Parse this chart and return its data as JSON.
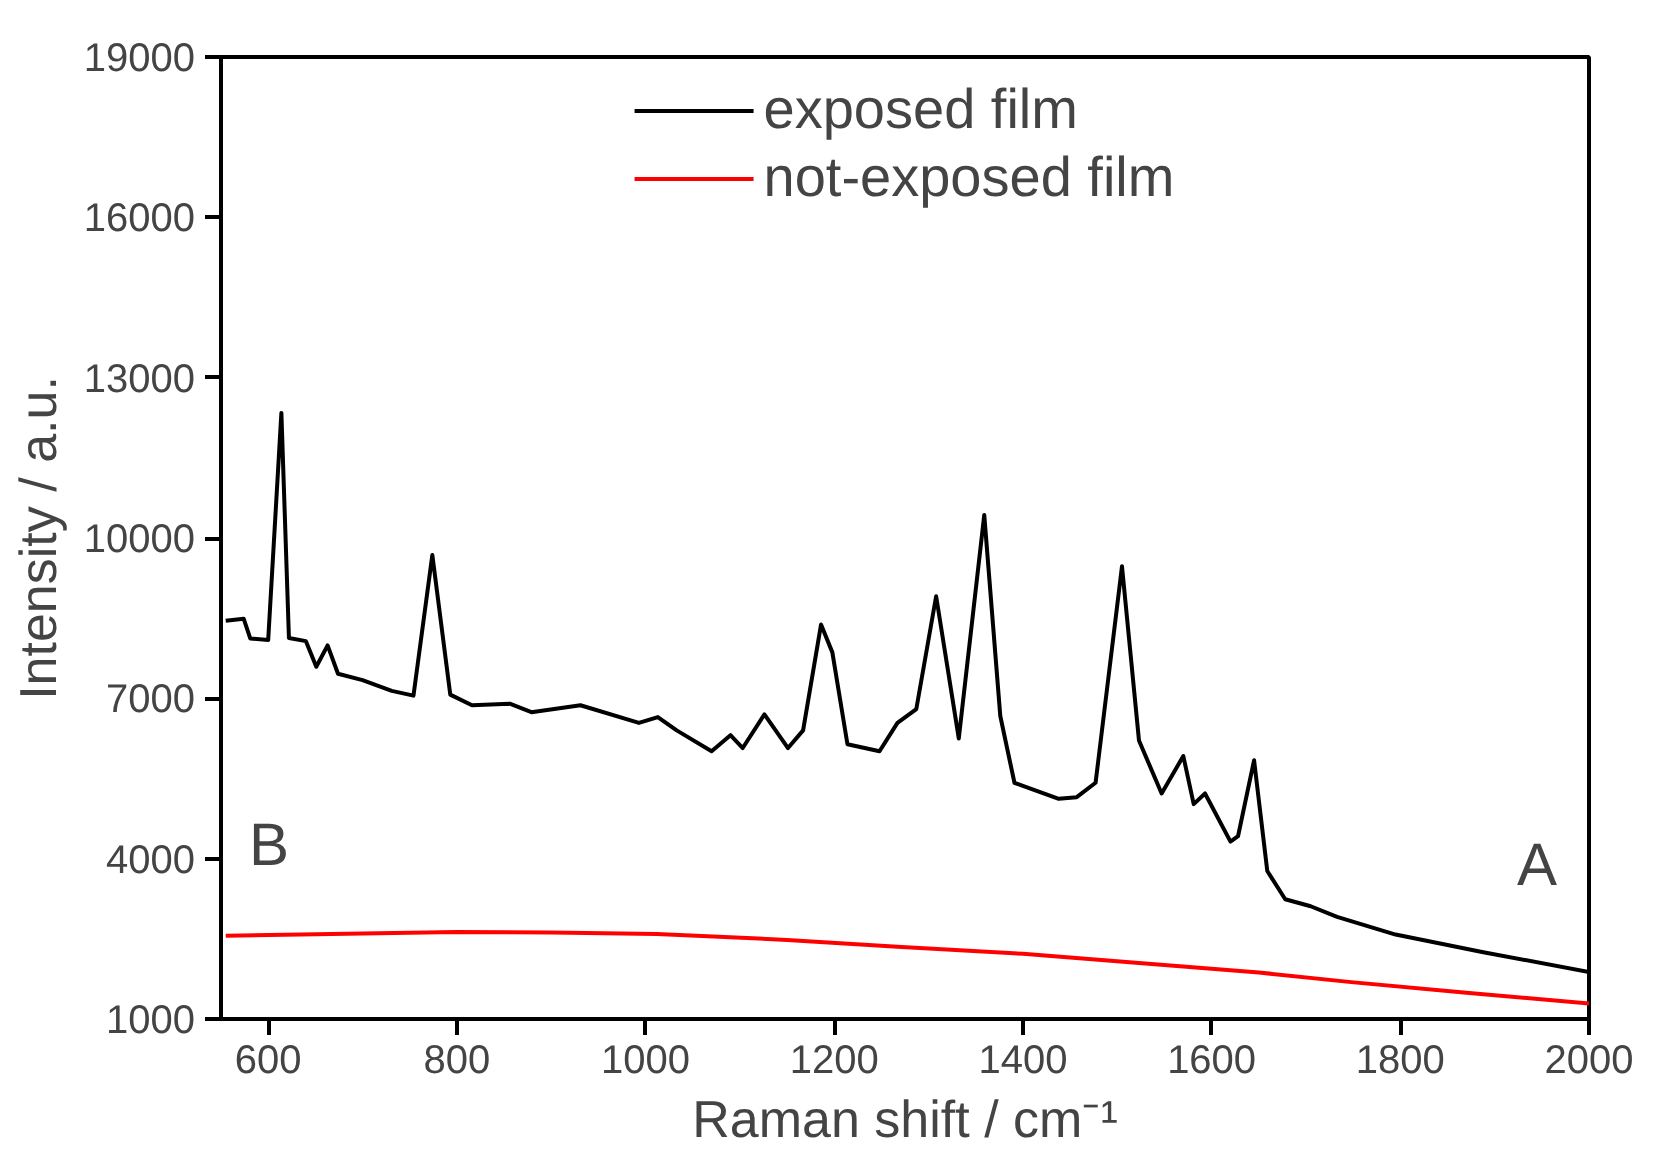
{
  "chart_data": {
    "type": "line",
    "xlabel": "Raman shift / cm⁻¹",
    "ylabel": "Intensity / a.u.",
    "xlim": [
      550,
      2000
    ],
    "xticks": [
      600,
      800,
      1000,
      1200,
      1400,
      1600,
      1800,
      2000
    ],
    "ylim": [
      1000,
      19000
    ],
    "yticks": [
      1000,
      4000,
      7000,
      10000,
      13000,
      16000,
      19000
    ],
    "grid": false,
    "legend": "top",
    "line_style": "solid",
    "marker": "none",
    "series": [
      {
        "name": "exposed film",
        "color": "#000000",
        "x": [
          555,
          574,
          581,
          600,
          614,
          622,
          640,
          651,
          663,
          674,
          700,
          731,
          754,
          774,
          793,
          816,
          856,
          879,
          931,
          993,
          1013,
          1033,
          1070,
          1090,
          1103,
          1126,
          1151,
          1167,
          1186,
          1198,
          1214,
          1248,
          1267,
          1287,
          1308,
          1332,
          1359,
          1376,
          1391,
          1438,
          1457,
          1477,
          1505,
          1523,
          1547,
          1570,
          1581,
          1593,
          1620,
          1628,
          1645,
          1659,
          1678,
          1705,
          1733,
          1795,
          1888,
          2000
        ],
        "values": [
          8450,
          8490,
          8120,
          8090,
          12340,
          8130,
          8070,
          7590,
          7990,
          7460,
          7340,
          7140,
          7050,
          9680,
          7070,
          6870,
          6900,
          6740,
          6870,
          6540,
          6650,
          6400,
          6010,
          6310,
          6070,
          6700,
          6070,
          6400,
          8380,
          7860,
          6140,
          6010,
          6540,
          6800,
          8910,
          6250,
          10430,
          6670,
          5420,
          5120,
          5150,
          5420,
          9470,
          6210,
          5220,
          5920,
          5020,
          5220,
          4320,
          4420,
          5840,
          3770,
          3240,
          3110,
          2910,
          2580,
          2250,
          1880
        ]
      },
      {
        "name": "not-exposed film",
        "color": "#ff0000",
        "x": [
          555,
          700,
          800,
          900,
          1012,
          1150,
          1267,
          1400,
          1523,
          1650,
          1748,
          1870,
          2000
        ],
        "values": [
          2560,
          2600,
          2630,
          2620,
          2590,
          2480,
          2350,
          2220,
          2050,
          1870,
          1690,
          1490,
          1290
        ]
      }
    ],
    "annotations": [
      "B",
      "A"
    ]
  }
}
